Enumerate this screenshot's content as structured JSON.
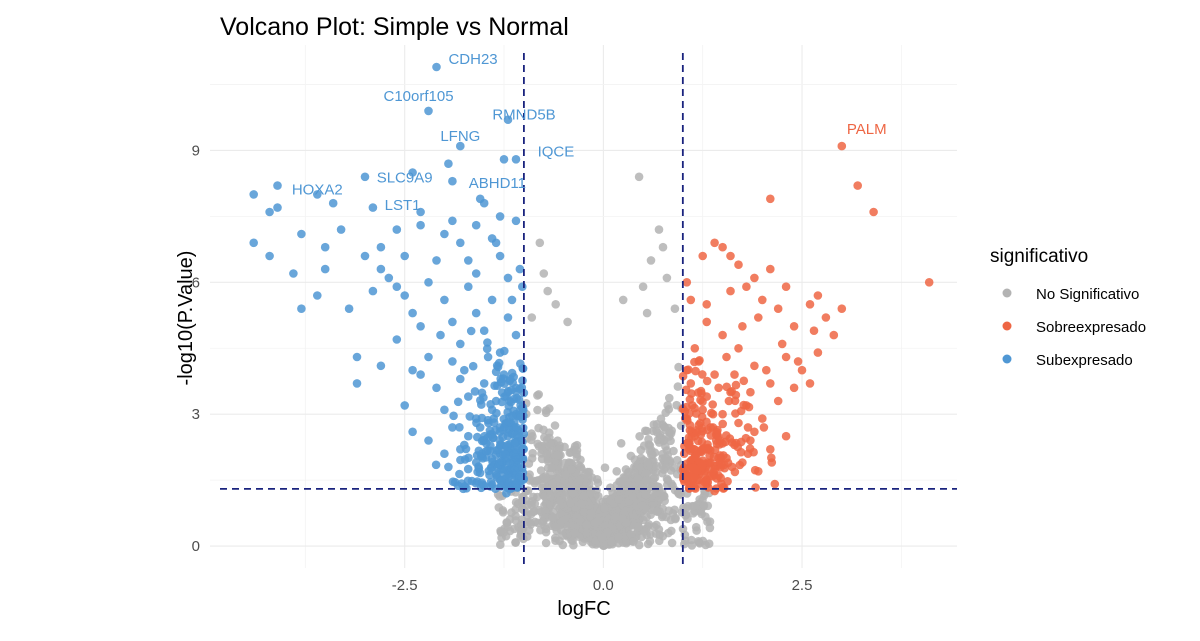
{
  "chart_data": {
    "type": "scatter",
    "title": "Volcano Plot: Simple vs Normal",
    "xlabel": "logFC",
    "ylabel": "-log10(P.Value)",
    "xlim": [
      -4.95,
      4.45
    ],
    "ylim": [
      -0.5,
      11.4
    ],
    "x_ticks": [
      -2.5,
      0.0,
      2.5
    ],
    "x_tick_labels": [
      "-2.5",
      "0.0",
      "2.5"
    ],
    "y_ticks": [
      0,
      3,
      6,
      9
    ],
    "y_tick_labels": [
      "0",
      "3",
      "6",
      "9"
    ],
    "grid": true,
    "thresholds": {
      "logFC": [
        -1,
        1
      ],
      "neg_log10_p": 1.3
    },
    "legend": {
      "title": "significativo",
      "position": "right",
      "entries": [
        {
          "label": "No Significativo",
          "color": "#b3b3b3"
        },
        {
          "label": "Sobreexpresado",
          "color": "#ee6644"
        },
        {
          "label": "Subexpresado",
          "color": "#4f97d4"
        }
      ]
    },
    "colors": {
      "no_significativo": "#b3b3b3",
      "sobreexpresado": "#ee6644",
      "subexpresado": "#4f97d4",
      "threshold_line": "#1a237e"
    },
    "labeled_genes": [
      {
        "gene": "CDH23",
        "x": -2.1,
        "y": 10.9,
        "group": "subexpresado"
      },
      {
        "gene": "C10orf105",
        "x": -2.2,
        "y": 9.9,
        "group": "subexpresado"
      },
      {
        "gene": "RMND5B",
        "x": -1.2,
        "y": 9.7,
        "group": "subexpresado"
      },
      {
        "gene": "LFNG",
        "x": -1.8,
        "y": 9.1,
        "group": "subexpresado"
      },
      {
        "gene": "IQCE",
        "x": -1.1,
        "y": 8.8,
        "group": "subexpresado"
      },
      {
        "gene": "SLC9A9",
        "x": -2.4,
        "y": 8.5,
        "group": "subexpresado"
      },
      {
        "gene": "ABHD11",
        "x": -1.9,
        "y": 8.3,
        "group": "subexpresado"
      },
      {
        "gene": "HOXA2",
        "x": -3.6,
        "y": 8.0,
        "group": "subexpresado"
      },
      {
        "gene": "LST1",
        "x": -2.3,
        "y": 7.6,
        "group": "subexpresado"
      },
      {
        "gene": "PALM",
        "x": 3.0,
        "y": 9.1,
        "group": "sobreexpresado"
      }
    ],
    "series": [
      {
        "name": "Subexpresado",
        "points": [
          [
            -4.4,
            8.0
          ],
          [
            -4.1,
            8.2
          ],
          [
            -4.2,
            7.6
          ],
          [
            -4.1,
            7.7
          ],
          [
            -4.4,
            6.9
          ],
          [
            -4.2,
            6.6
          ],
          [
            -3.8,
            7.1
          ],
          [
            -3.9,
            6.2
          ],
          [
            -3.6,
            5.7
          ],
          [
            -3.8,
            5.4
          ],
          [
            -3.4,
            7.8
          ],
          [
            -3.5,
            6.8
          ],
          [
            -3.3,
            7.2
          ],
          [
            -3.2,
            5.4
          ],
          [
            -3.0,
            8.4
          ],
          [
            -2.9,
            7.7
          ],
          [
            -3.0,
            6.6
          ],
          [
            -2.8,
            6.8
          ],
          [
            -2.9,
            5.8
          ],
          [
            -3.1,
            4.3
          ],
          [
            -3.1,
            3.7
          ],
          [
            -2.8,
            6.3
          ],
          [
            -2.6,
            7.2
          ],
          [
            -2.5,
            6.6
          ],
          [
            -2.7,
            6.1
          ],
          [
            -2.5,
            5.7
          ],
          [
            -2.4,
            5.3
          ],
          [
            -2.6,
            4.7
          ],
          [
            -2.8,
            4.1
          ],
          [
            -2.5,
            3.2
          ],
          [
            -2.4,
            2.6
          ],
          [
            -2.3,
            3.9
          ],
          [
            -2.2,
            4.3
          ],
          [
            -2.1,
            6.5
          ],
          [
            -2.0,
            7.1
          ],
          [
            -1.9,
            7.4
          ],
          [
            -1.8,
            6.9
          ],
          [
            -1.7,
            6.5
          ],
          [
            -1.6,
            7.3
          ],
          [
            -1.5,
            7.8
          ],
          [
            -1.4,
            7.0
          ],
          [
            -1.3,
            6.6
          ],
          [
            -1.2,
            6.1
          ],
          [
            -1.1,
            7.4
          ],
          [
            -1.05,
            6.3
          ],
          [
            -2.0,
            5.6
          ],
          [
            -1.9,
            5.1
          ],
          [
            -1.8,
            4.6
          ],
          [
            -1.7,
            5.9
          ],
          [
            -1.6,
            5.3
          ],
          [
            -1.5,
            4.9
          ],
          [
            -1.4,
            5.6
          ],
          [
            -1.3,
            4.4
          ],
          [
            -1.2,
            5.2
          ],
          [
            -1.1,
            4.8
          ],
          [
            -2.1,
            3.6
          ],
          [
            -2.0,
            3.1
          ],
          [
            -1.9,
            2.7
          ],
          [
            -1.8,
            3.8
          ],
          [
            -1.7,
            3.4
          ],
          [
            -1.6,
            2.9
          ],
          [
            -1.5,
            3.7
          ],
          [
            -1.4,
            3.1
          ],
          [
            -1.3,
            2.6
          ],
          [
            -1.2,
            3.5
          ],
          [
            -1.1,
            3.0
          ],
          [
            -1.05,
            2.4
          ],
          [
            -2.2,
            2.4
          ],
          [
            -2.0,
            2.1
          ],
          [
            -1.8,
            2.2
          ],
          [
            -1.6,
            1.9
          ],
          [
            -1.5,
            2.4
          ],
          [
            -1.4,
            1.8
          ],
          [
            -1.3,
            2.1
          ],
          [
            -1.2,
            1.7
          ],
          [
            -1.1,
            1.9
          ],
          [
            -1.05,
            1.5
          ],
          [
            -1.15,
            1.4
          ],
          [
            -1.3,
            1.5
          ],
          [
            -1.4,
            1.4
          ],
          [
            -1.7,
            2.5
          ],
          [
            -1.9,
            4.2
          ],
          [
            -2.3,
            5.0
          ],
          [
            -2.6,
            5.9
          ],
          [
            -2.3,
            7.3
          ],
          [
            -2.2,
            6.0
          ],
          [
            -1.6,
            6.2
          ],
          [
            -1.35,
            6.9
          ],
          [
            -1.15,
            5.6
          ],
          [
            -1.02,
            5.9
          ],
          [
            -1.25,
            8.8
          ],
          [
            -1.3,
            7.5
          ],
          [
            -1.55,
            7.9
          ],
          [
            -1.95,
            8.7
          ],
          [
            -3.5,
            6.3
          ],
          [
            -2.4,
            4.0
          ],
          [
            -2.05,
            4.8
          ],
          [
            -1.75,
            4.0
          ],
          [
            -1.45,
            4.3
          ],
          [
            -1.25,
            3.9
          ],
          [
            -1.1,
            3.6
          ],
          [
            -1.35,
            3.3
          ],
          [
            -1.55,
            2.7
          ],
          [
            -1.75,
            2.3
          ],
          [
            -1.95,
            1.8
          ],
          [
            -1.12,
            2.7
          ],
          [
            -1.2,
            2.3
          ],
          [
            -1.05,
            2.0
          ],
          [
            -1.22,
            1.2
          ],
          [
            -1.38,
            2.9
          ]
        ]
      },
      {
        "name": "Sobreexpresado",
        "points": [
          [
            3.2,
            8.2
          ],
          [
            3.4,
            7.6
          ],
          [
            4.1,
            6.0
          ],
          [
            2.1,
            7.9
          ],
          [
            1.4,
            6.9
          ],
          [
            1.6,
            6.6
          ],
          [
            2.1,
            6.3
          ],
          [
            1.8,
            5.9
          ],
          [
            2.0,
            5.6
          ],
          [
            2.2,
            5.4
          ],
          [
            2.4,
            5.0
          ],
          [
            2.6,
            5.5
          ],
          [
            2.8,
            5.2
          ],
          [
            2.9,
            4.8
          ],
          [
            3.0,
            5.4
          ],
          [
            2.7,
            4.4
          ],
          [
            2.5,
            4.0
          ],
          [
            2.3,
            4.3
          ],
          [
            2.1,
            3.7
          ],
          [
            1.9,
            4.1
          ],
          [
            1.7,
            4.5
          ],
          [
            1.5,
            4.8
          ],
          [
            1.3,
            5.1
          ],
          [
            1.1,
            5.6
          ],
          [
            1.05,
            6.0
          ],
          [
            1.2,
            4.2
          ],
          [
            1.4,
            3.9
          ],
          [
            1.6,
            3.5
          ],
          [
            1.8,
            3.2
          ],
          [
            2.0,
            2.9
          ],
          [
            2.2,
            3.3
          ],
          [
            2.4,
            3.6
          ],
          [
            2.6,
            3.7
          ],
          [
            2.3,
            2.5
          ],
          [
            2.1,
            2.2
          ],
          [
            1.9,
            2.6
          ],
          [
            1.7,
            2.8
          ],
          [
            1.5,
            3.0
          ],
          [
            1.3,
            3.4
          ],
          [
            1.1,
            3.7
          ],
          [
            1.05,
            2.9
          ],
          [
            1.15,
            2.5
          ],
          [
            1.25,
            2.2
          ],
          [
            1.35,
            1.9
          ],
          [
            1.45,
            1.6
          ],
          [
            1.55,
            2.0
          ],
          [
            1.65,
            2.3
          ],
          [
            1.75,
            1.9
          ],
          [
            1.85,
            2.4
          ],
          [
            1.95,
            1.7
          ],
          [
            1.05,
            1.6
          ],
          [
            1.1,
            1.35
          ],
          [
            1.2,
            1.5
          ],
          [
            1.3,
            1.4
          ],
          [
            1.4,
            1.25
          ],
          [
            1.35,
            2.7
          ],
          [
            1.25,
            3.1
          ],
          [
            1.45,
            3.6
          ],
          [
            1.65,
            3.9
          ],
          [
            1.85,
            3.5
          ],
          [
            2.05,
            4.0
          ],
          [
            2.25,
            4.6
          ],
          [
            2.45,
            4.2
          ],
          [
            2.65,
            4.9
          ],
          [
            1.55,
            4.3
          ],
          [
            1.75,
            5.0
          ],
          [
            1.95,
            5.2
          ],
          [
            1.15,
            4.5
          ],
          [
            1.05,
            4.0
          ],
          [
            1.3,
            5.5
          ],
          [
            1.6,
            5.8
          ],
          [
            1.9,
            6.1
          ],
          [
            2.3,
            5.9
          ],
          [
            2.7,
            5.7
          ],
          [
            1.25,
            6.6
          ],
          [
            1.5,
            6.8
          ],
          [
            1.7,
            6.4
          ],
          [
            1.12,
            3.2
          ],
          [
            1.22,
            2.8
          ],
          [
            1.42,
            2.4
          ],
          [
            1.62,
            1.8
          ],
          [
            1.82,
            2.1
          ],
          [
            2.02,
            2.7
          ],
          [
            2.12,
            1.9
          ],
          [
            1.08,
            2.2
          ],
          [
            1.18,
            1.9
          ],
          [
            1.28,
            1.7
          ],
          [
            1.48,
            2.0
          ],
          [
            1.38,
            3.0
          ],
          [
            1.58,
            3.3
          ]
        ]
      }
    ]
  }
}
